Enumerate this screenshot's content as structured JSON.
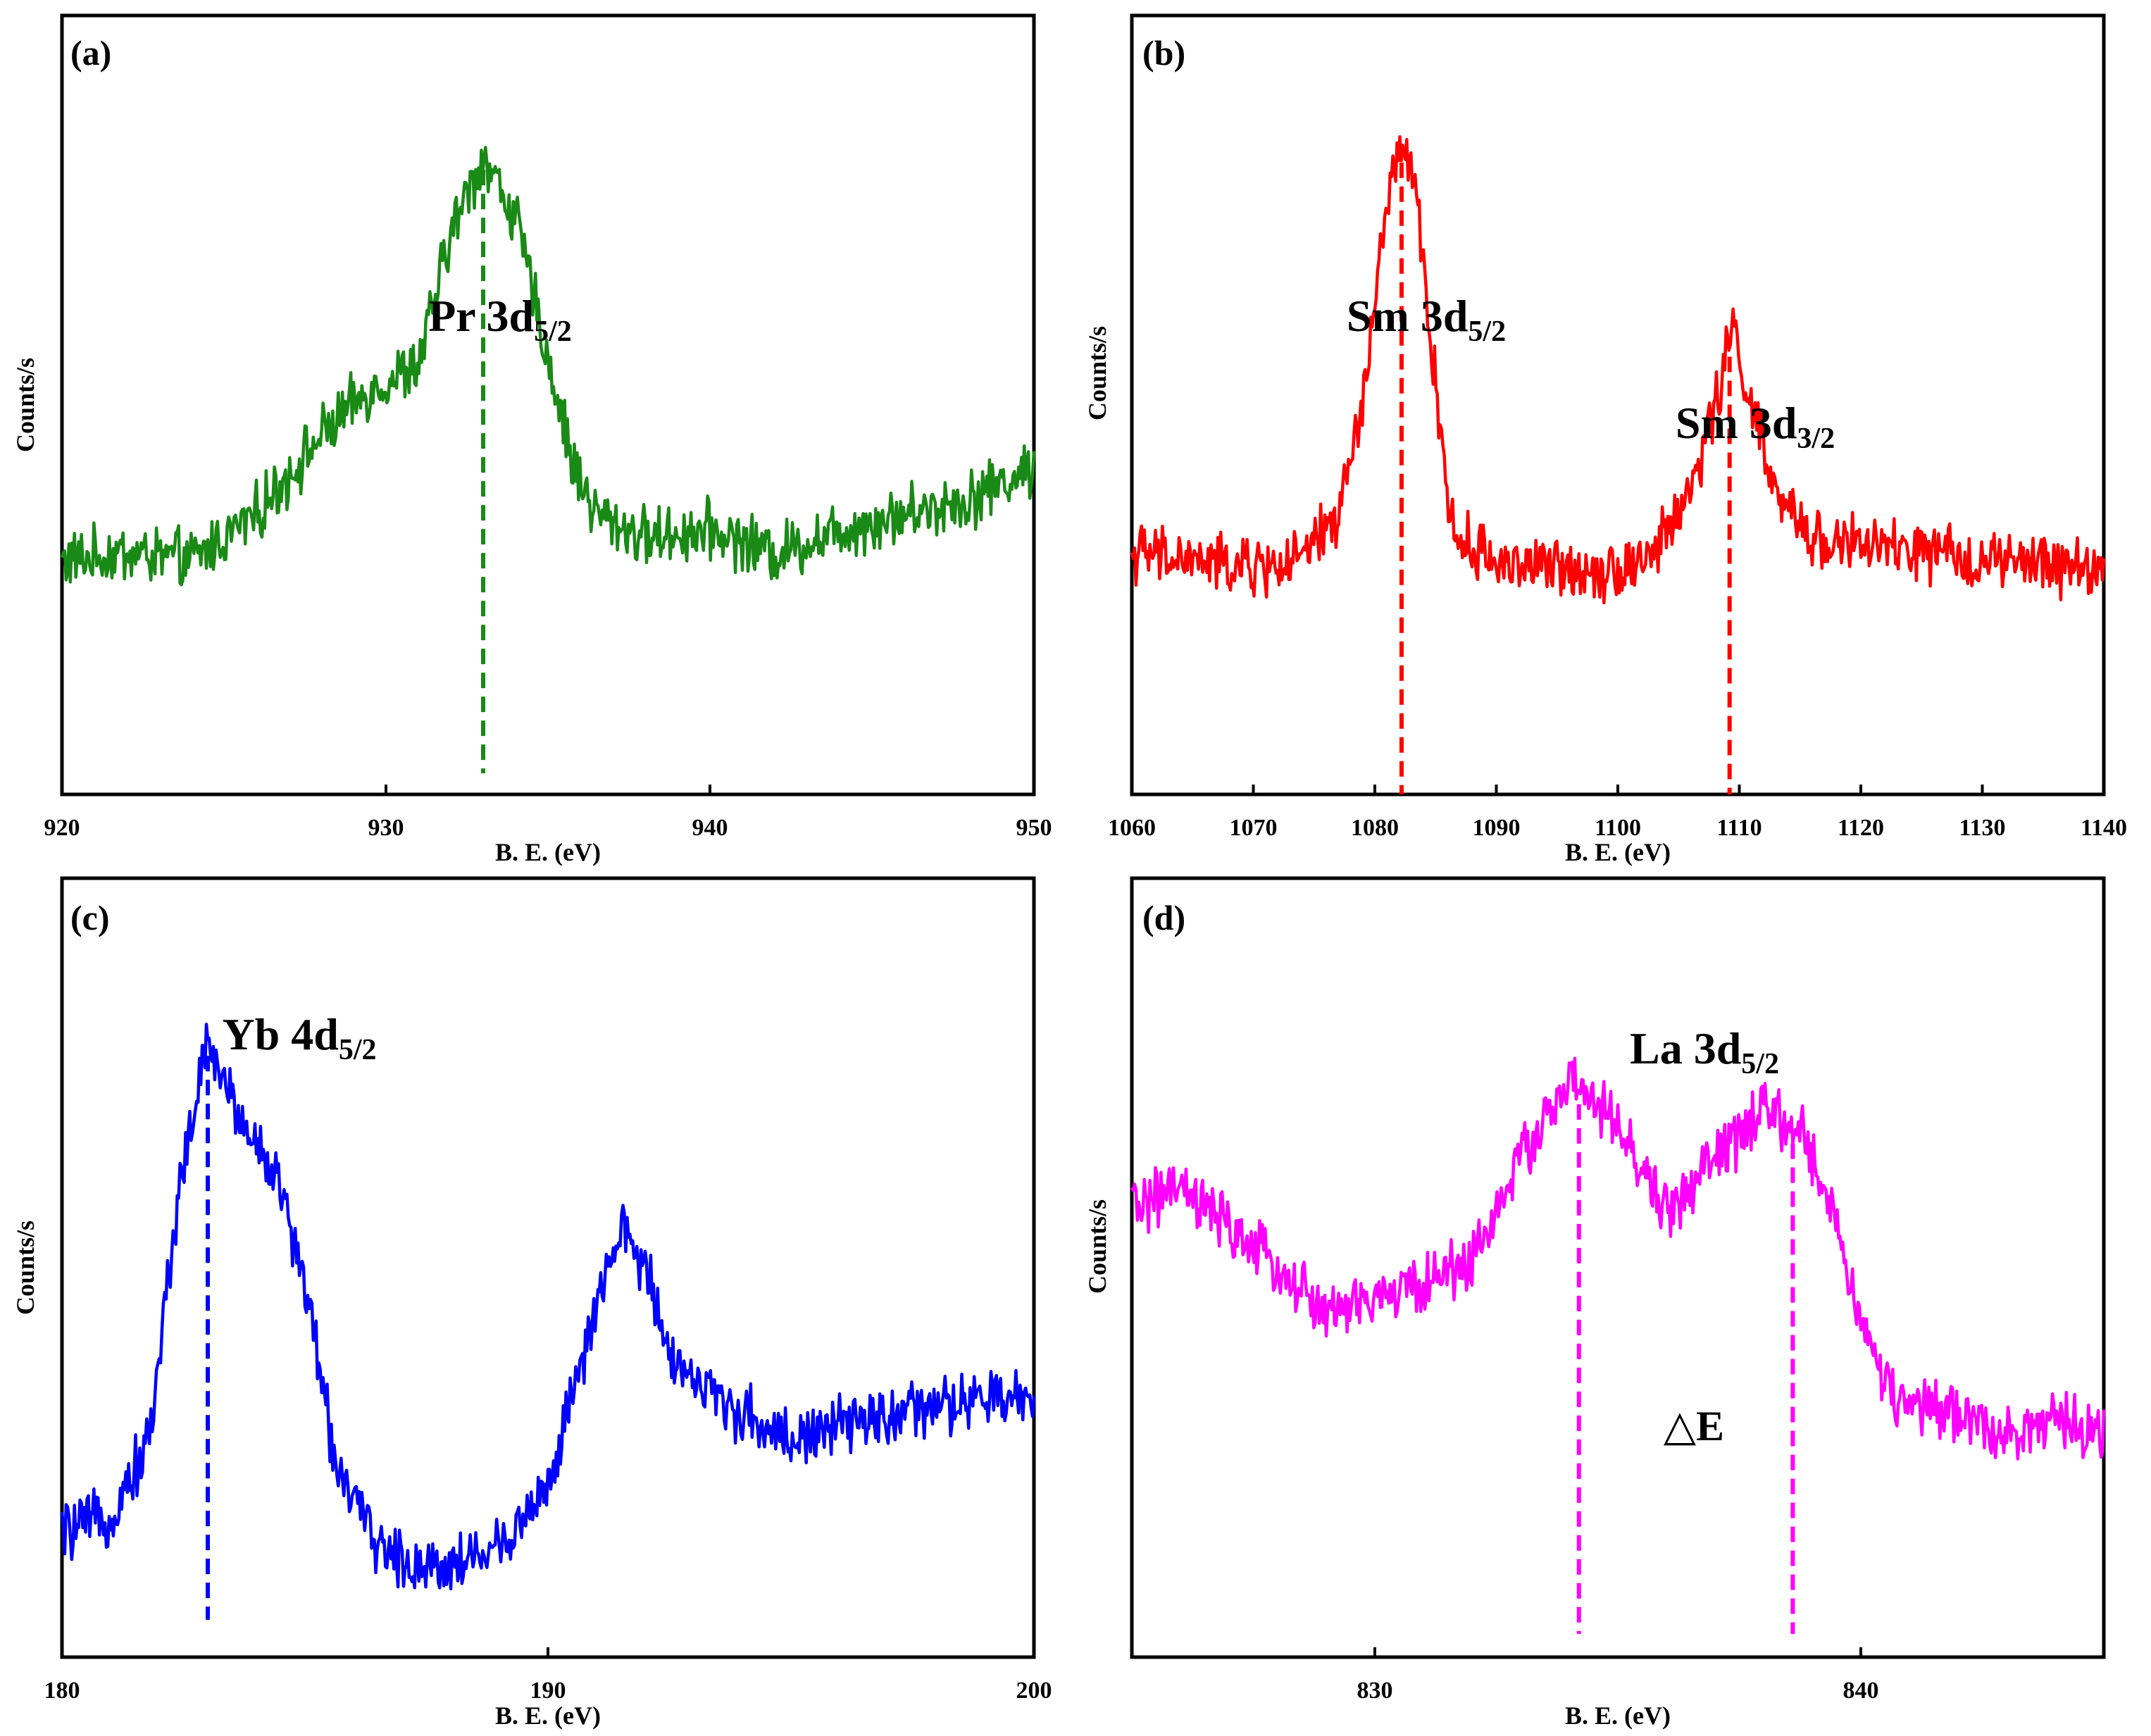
{
  "chart_data": [
    {
      "type": "line",
      "panel_label": "(a)",
      "xlabel": "B. E. (eV)",
      "ylabel": "Counts/s",
      "xlim": [
        920,
        950
      ],
      "xticks": [
        920,
        930,
        940,
        950
      ],
      "color": "#1a8a16",
      "peaks": [
        {
          "main": "Pr 3d",
          "sub": "5/2",
          "position": 933.0
        }
      ],
      "series": [
        {
          "name": "Pr 3d",
          "x": [
            920,
            922,
            924,
            926,
            928,
            929.5,
            931,
            932,
            933,
            934,
            935,
            935.8,
            936.5,
            938,
            940,
            942,
            944,
            946,
            948,
            950
          ],
          "y": [
            0.3,
            0.31,
            0.3,
            0.36,
            0.46,
            0.52,
            0.55,
            0.72,
            0.82,
            0.74,
            0.56,
            0.42,
            0.36,
            0.33,
            0.34,
            0.31,
            0.34,
            0.36,
            0.38,
            0.42
          ]
        }
      ]
    },
    {
      "type": "line",
      "panel_label": "(b)",
      "xlabel": "B. E. (eV)",
      "ylabel": "Counts/s",
      "xlim": [
        1060,
        1140
      ],
      "xticks": [
        1060,
        1070,
        1080,
        1090,
        1100,
        1110,
        1120,
        1130,
        1140
      ],
      "color": "#ff0000",
      "peaks": [
        {
          "main": "Sm 3d",
          "sub": "5/2",
          "position": 1082.2
        },
        {
          "main": "Sm 3d",
          "sub": "3/2",
          "position": 1109.2
        }
      ],
      "series": [
        {
          "name": "Sm 3d",
          "x": [
            1060,
            1065,
            1070,
            1074,
            1077,
            1079,
            1080.5,
            1082,
            1083.5,
            1085,
            1086.5,
            1090,
            1095,
            1100,
            1103,
            1106,
            1108,
            1109.5,
            1111,
            1113,
            1116,
            1120,
            1130,
            1140
          ],
          "y": [
            0.31,
            0.3,
            0.29,
            0.3,
            0.36,
            0.5,
            0.7,
            0.84,
            0.76,
            0.52,
            0.33,
            0.3,
            0.29,
            0.29,
            0.31,
            0.39,
            0.5,
            0.6,
            0.5,
            0.38,
            0.33,
            0.32,
            0.3,
            0.29
          ]
        }
      ]
    },
    {
      "type": "line",
      "panel_label": "(c)",
      "xlabel": "B. E. (eV)",
      "ylabel": "Counts/s",
      "xlim": [
        180,
        200
      ],
      "xticks": [
        180,
        190,
        200
      ],
      "color": "#0000ff",
      "peaks": [
        {
          "main": "Yb 4d",
          "sub": "5/2",
          "position": 183.0
        }
      ],
      "series": [
        {
          "name": "Yb 4d",
          "x": [
            180,
            181,
            181.8,
            182.4,
            183,
            183.6,
            184.4,
            185,
            185.6,
            186.3,
            187,
            188,
            189,
            190,
            190.8,
            191.5,
            192,
            192.6,
            193.5,
            195,
            197,
            199,
            200
          ],
          "y": [
            0.16,
            0.18,
            0.28,
            0.6,
            0.79,
            0.7,
            0.62,
            0.48,
            0.26,
            0.16,
            0.12,
            0.12,
            0.14,
            0.22,
            0.4,
            0.55,
            0.5,
            0.38,
            0.33,
            0.28,
            0.31,
            0.33,
            0.33
          ]
        }
      ]
    },
    {
      "type": "line",
      "panel_label": "(d)",
      "xlabel": "B. E. (eV)",
      "ylabel": "Counts/s",
      "xlim": [
        825,
        845
      ],
      "xticks": [
        830,
        840
      ],
      "color": "#ff00ff",
      "peaks": [
        {
          "main": "La 3d",
          "sub": "5/2",
          "position": 834.2
        }
      ],
      "marker_positions": [
        834.2,
        838.6
      ],
      "annotation": "△E",
      "series": [
        {
          "name": "La 3d",
          "x": [
            825,
            826,
            827,
            828,
            829,
            830,
            831,
            832,
            833,
            834,
            835,
            836,
            837,
            838,
            838.8,
            839.5,
            840,
            840.5,
            841,
            842,
            843,
            844,
            845
          ],
          "y": [
            0.58,
            0.6,
            0.55,
            0.5,
            0.44,
            0.46,
            0.48,
            0.51,
            0.64,
            0.74,
            0.68,
            0.57,
            0.64,
            0.7,
            0.67,
            0.56,
            0.43,
            0.35,
            0.32,
            0.31,
            0.29,
            0.3,
            0.29
          ]
        }
      ]
    }
  ]
}
